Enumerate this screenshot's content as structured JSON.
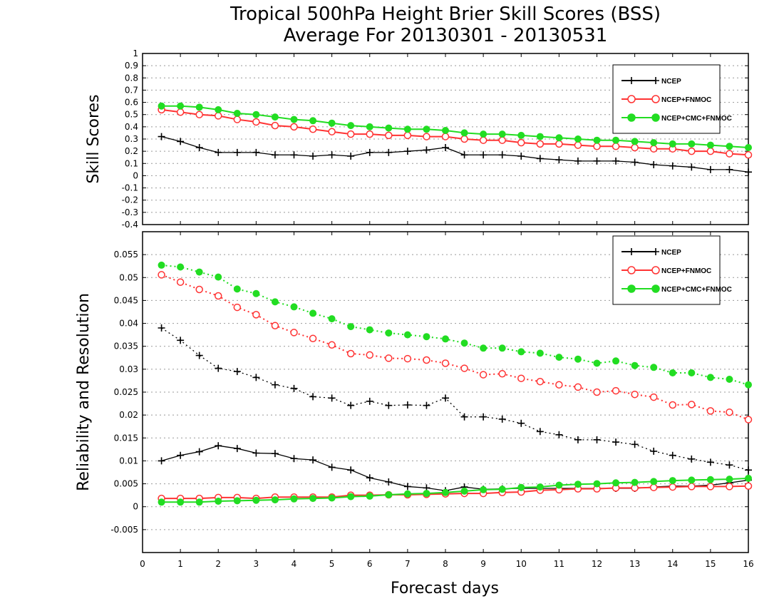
{
  "title_line1": "Tropical 500hPa Height Brier Skill Scores (BSS)",
  "title_line2": "Average For 20130301 - 20130531",
  "xlabel": "Forecast days",
  "colors": {
    "ncep": "#000000",
    "fnmoc": "#ff3333",
    "cmc": "#22dd22"
  },
  "chart_data": [
    {
      "type": "line",
      "ylabel": "Skill Scores",
      "ylim": [
        -0.4,
        1
      ],
      "xlim": [
        0,
        16
      ],
      "yticks": [
        "-0.4",
        "-0.3",
        "-0.2",
        "-0.1",
        "0",
        "0.1",
        "0.2",
        "0.3",
        "0.4",
        "0.5",
        "0.6",
        "0.7",
        "0.8",
        "0.9",
        "1"
      ],
      "xticks": [
        "0",
        "1",
        "2",
        "3",
        "4",
        "5",
        "6",
        "7",
        "8",
        "9",
        "10",
        "11",
        "12",
        "13",
        "14",
        "15",
        "16"
      ],
      "grid": true,
      "legend": "top-right",
      "x": [
        0.5,
        1,
        1.5,
        2,
        2.5,
        3,
        3.5,
        4,
        4.5,
        5,
        5.5,
        6,
        6.5,
        7,
        7.5,
        8,
        8.5,
        9,
        9.5,
        10,
        10.5,
        11,
        11.5,
        12,
        12.5,
        13,
        13.5,
        14,
        14.5,
        15,
        15.5,
        16
      ],
      "series": [
        {
          "name": "NCEP",
          "style": "solid",
          "marker": "plus",
          "color": "#000000",
          "values": [
            0.32,
            0.28,
            0.23,
            0.19,
            0.19,
            0.19,
            0.17,
            0.17,
            0.16,
            0.17,
            0.16,
            0.19,
            0.19,
            0.2,
            0.21,
            0.23,
            0.17,
            0.17,
            0.17,
            0.16,
            0.14,
            0.13,
            0.12,
            0.12,
            0.12,
            0.11,
            0.09,
            0.08,
            0.07,
            0.05,
            0.05,
            0.03
          ]
        },
        {
          "name": "NCEP+FNMOC",
          "style": "solid",
          "marker": "circle-open",
          "color": "#ff3333",
          "values": [
            0.54,
            0.52,
            0.5,
            0.49,
            0.46,
            0.44,
            0.41,
            0.4,
            0.38,
            0.36,
            0.34,
            0.34,
            0.33,
            0.33,
            0.32,
            0.32,
            0.3,
            0.29,
            0.29,
            0.27,
            0.26,
            0.26,
            0.25,
            0.24,
            0.24,
            0.23,
            0.22,
            0.22,
            0.2,
            0.2,
            0.18,
            0.17
          ]
        },
        {
          "name": "NCEP+CMC+FNMOC",
          "style": "solid",
          "marker": "circle-filled",
          "color": "#22dd22",
          "values": [
            0.57,
            0.57,
            0.56,
            0.54,
            0.51,
            0.5,
            0.48,
            0.46,
            0.45,
            0.43,
            0.41,
            0.4,
            0.39,
            0.38,
            0.38,
            0.37,
            0.35,
            0.34,
            0.34,
            0.33,
            0.32,
            0.31,
            0.3,
            0.29,
            0.29,
            0.28,
            0.27,
            0.26,
            0.26,
            0.25,
            0.24,
            0.23
          ]
        }
      ]
    },
    {
      "type": "line",
      "ylabel": "Reliability and Resolution",
      "ylim": [
        -0.01,
        0.06
      ],
      "xlim": [
        0,
        16
      ],
      "yticks": [
        "-0.005",
        "0",
        "0.005",
        "0.01",
        "0.015",
        "0.02",
        "0.025",
        "0.03",
        "0.035",
        "0.04",
        "0.045",
        "0.05",
        "0.055"
      ],
      "ytick_values": [
        -0.005,
        0,
        0.005,
        0.01,
        0.015,
        0.02,
        0.025,
        0.03,
        0.035,
        0.04,
        0.045,
        0.05,
        0.055
      ],
      "xticks": [
        "0",
        "1",
        "2",
        "3",
        "4",
        "5",
        "6",
        "7",
        "8",
        "9",
        "10",
        "11",
        "12",
        "13",
        "14",
        "15",
        "16"
      ],
      "grid": true,
      "legend": "top-right",
      "x": [
        0.5,
        1,
        1.5,
        2,
        2.5,
        3,
        3.5,
        4,
        4.5,
        5,
        5.5,
        6,
        6.5,
        7,
        7.5,
        8,
        8.5,
        9,
        9.5,
        10,
        10.5,
        11,
        11.5,
        12,
        12.5,
        13,
        13.5,
        14,
        14.5,
        15,
        15.5,
        16
      ],
      "series": [
        {
          "name": "NCEP",
          "style": "dotted",
          "marker": "plus",
          "color": "#000000",
          "values": [
            0.039,
            0.0363,
            0.033,
            0.0302,
            0.0295,
            0.0282,
            0.0266,
            0.0258,
            0.024,
            0.0237,
            0.0221,
            0.023,
            0.0221,
            0.0222,
            0.0221,
            0.0237,
            0.0196,
            0.0196,
            0.0191,
            0.0182,
            0.0164,
            0.0157,
            0.0146,
            0.0146,
            0.0141,
            0.0136,
            0.0121,
            0.0112,
            0.0104,
            0.0097,
            0.0091,
            0.008
          ]
        },
        {
          "name": "NCEP+FNMOC",
          "style": "dotted",
          "marker": "circle-open",
          "color": "#ff3333",
          "values": [
            0.0506,
            0.049,
            0.0474,
            0.046,
            0.0435,
            0.0419,
            0.0395,
            0.038,
            0.0367,
            0.0353,
            0.0334,
            0.0331,
            0.0324,
            0.0323,
            0.032,
            0.0313,
            0.0302,
            0.0288,
            0.029,
            0.028,
            0.0273,
            0.0266,
            0.0261,
            0.025,
            0.0253,
            0.0245,
            0.0239,
            0.0222,
            0.0223,
            0.0209,
            0.0206,
            0.019
          ]
        },
        {
          "name": "NCEP+CMC+FNMOC",
          "style": "dotted",
          "marker": "circle-filled",
          "color": "#22dd22",
          "values": [
            0.0527,
            0.0523,
            0.0512,
            0.0501,
            0.0475,
            0.0465,
            0.0447,
            0.0436,
            0.0422,
            0.041,
            0.0393,
            0.0386,
            0.0379,
            0.0375,
            0.0371,
            0.0366,
            0.0357,
            0.0346,
            0.0346,
            0.0338,
            0.0335,
            0.0326,
            0.0322,
            0.0313,
            0.0318,
            0.0308,
            0.0304,
            0.0292,
            0.0292,
            0.0282,
            0.0278,
            0.0266
          ]
        },
        {
          "name": "NCEP",
          "style": "solid",
          "marker": "plus",
          "color": "#000000",
          "values": [
            0.01,
            0.0112,
            0.012,
            0.0133,
            0.0127,
            0.0117,
            0.0116,
            0.0105,
            0.0102,
            0.0086,
            0.008,
            0.0063,
            0.0054,
            0.0044,
            0.0041,
            0.0035,
            0.0043,
            0.0038,
            0.0039,
            0.004,
            0.004,
            0.004,
            0.004,
            0.004,
            0.004,
            0.004,
            0.0043,
            0.0045,
            0.0045,
            0.0047,
            0.0052,
            0.0058
          ]
        },
        {
          "name": "NCEP+FNMOC",
          "style": "solid",
          "marker": "circle-open",
          "color": "#ff3333",
          "values": [
            0.0018,
            0.0018,
            0.0018,
            0.002,
            0.002,
            0.0018,
            0.0021,
            0.0021,
            0.0021,
            0.0021,
            0.0025,
            0.0025,
            0.0026,
            0.0026,
            0.0027,
            0.0028,
            0.0029,
            0.0029,
            0.0031,
            0.0032,
            0.0036,
            0.0037,
            0.0039,
            0.0039,
            0.0041,
            0.0041,
            0.0042,
            0.0043,
            0.0044,
            0.0044,
            0.0044,
            0.0045
          ]
        },
        {
          "name": "NCEP+CMC+FNMOC",
          "style": "solid",
          "marker": "circle-filled",
          "color": "#22dd22",
          "values": [
            0.001,
            0.001,
            0.001,
            0.0012,
            0.0013,
            0.0014,
            0.0015,
            0.0017,
            0.0018,
            0.0019,
            0.0022,
            0.0023,
            0.0026,
            0.0028,
            0.0029,
            0.0031,
            0.0034,
            0.0037,
            0.0038,
            0.0042,
            0.0043,
            0.0047,
            0.0049,
            0.005,
            0.0052,
            0.0053,
            0.0055,
            0.0057,
            0.0058,
            0.0059,
            0.006,
            0.0062
          ]
        }
      ]
    }
  ]
}
